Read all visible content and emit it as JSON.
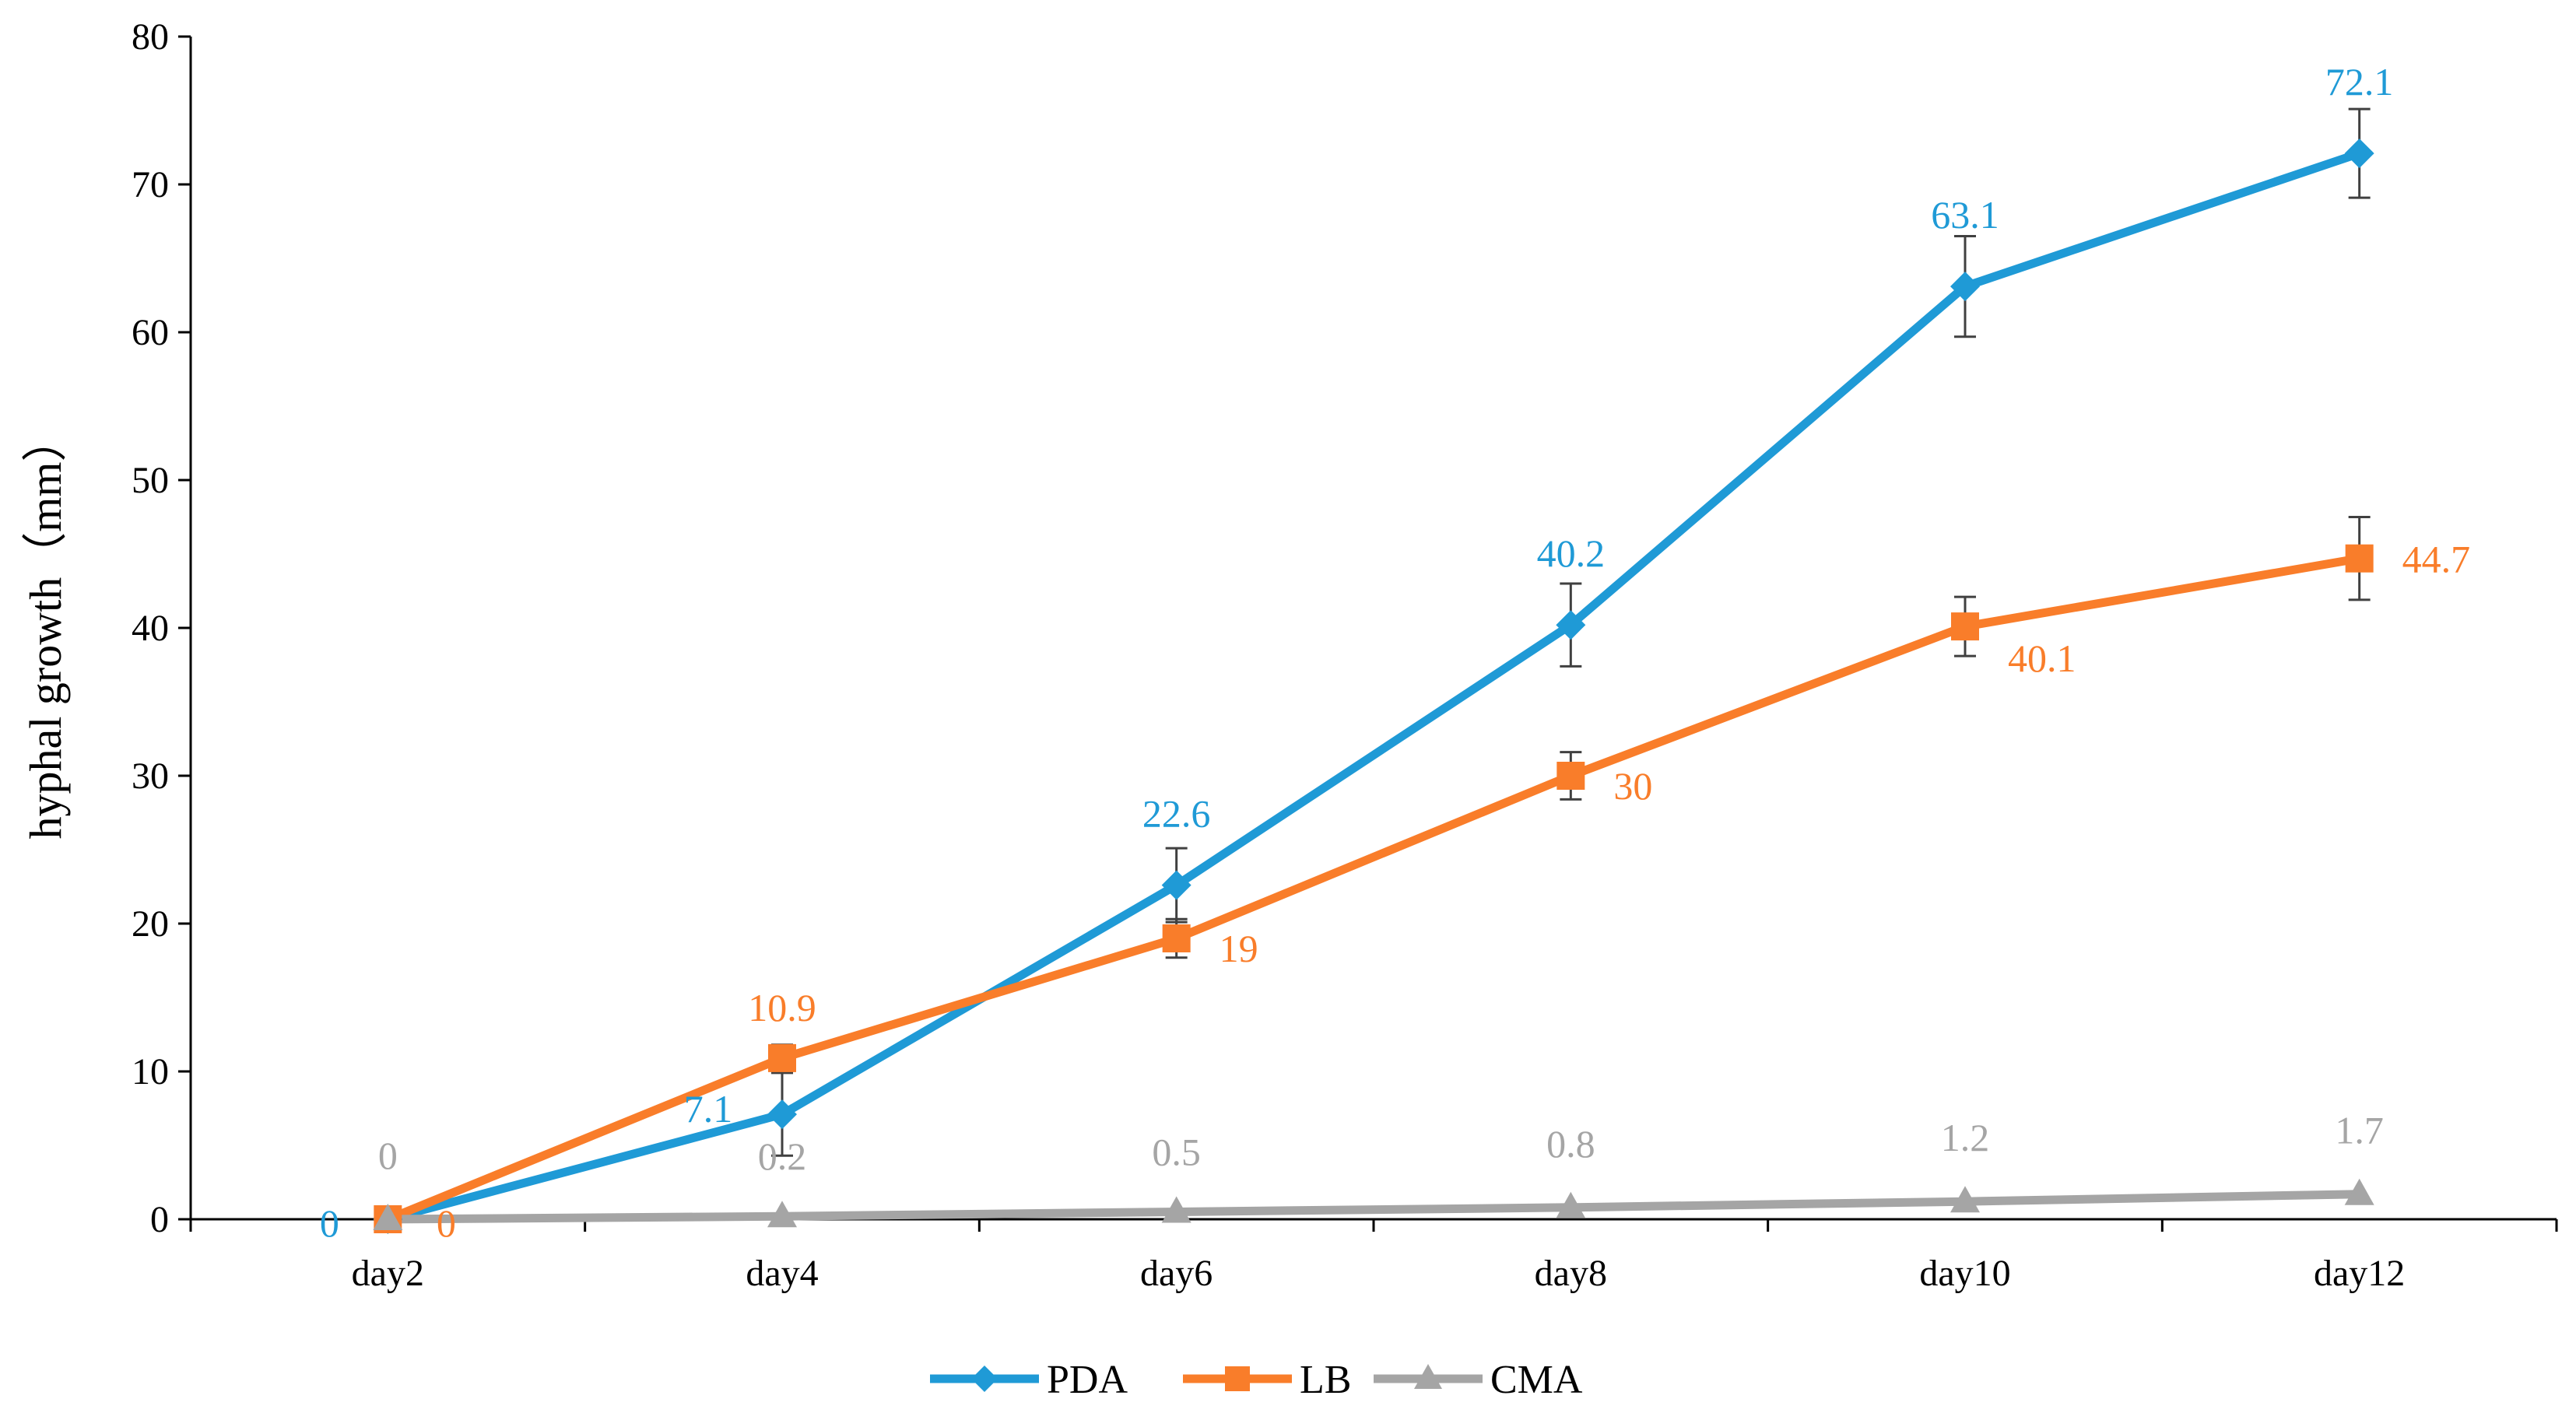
{
  "chart_data": {
    "type": "line",
    "title": "",
    "xlabel": "",
    "ylabel": "hyphal growth（mm）",
    "ylim": [
      0,
      80
    ],
    "yticks": [
      "0",
      "10",
      "20",
      "30",
      "40",
      "50",
      "60",
      "70",
      "80"
    ],
    "grid": false,
    "legend_position": "bottom",
    "categories": [
      "day2",
      "day4",
      "day6",
      "day8",
      "day10",
      "day12"
    ],
    "series": [
      {
        "name": "PDA",
        "color": "#1f9ad6",
        "marker": "diamond",
        "values": [
          0,
          7.1,
          22.6,
          40.2,
          63.1,
          72.1
        ],
        "error": [
          0,
          2.8,
          2.5,
          2.8,
          3.4,
          3.0
        ],
        "labels": [
          "0",
          "7.1",
          "22.6",
          "40.2",
          "63.1",
          "72.1"
        ]
      },
      {
        "name": "LB",
        "color": "#f97d2a",
        "marker": "square",
        "values": [
          0,
          10.9,
          19,
          30,
          40.1,
          44.7
        ],
        "error": [
          0,
          0.9,
          1.3,
          1.6,
          2.0,
          2.8
        ],
        "labels": [
          "0",
          "10.9",
          "19",
          "30",
          "40.1",
          "44.7"
        ]
      },
      {
        "name": "CMA",
        "color": "#a5a5a5",
        "marker": "triangle",
        "values": [
          0,
          0.2,
          0.5,
          0.8,
          1.2,
          1.7
        ],
        "error": [
          0,
          0,
          0,
          0,
          0,
          0
        ],
        "labels": [
          "0",
          "0.2",
          "0.5",
          "0.8",
          "1.2",
          "1.7"
        ]
      }
    ]
  }
}
